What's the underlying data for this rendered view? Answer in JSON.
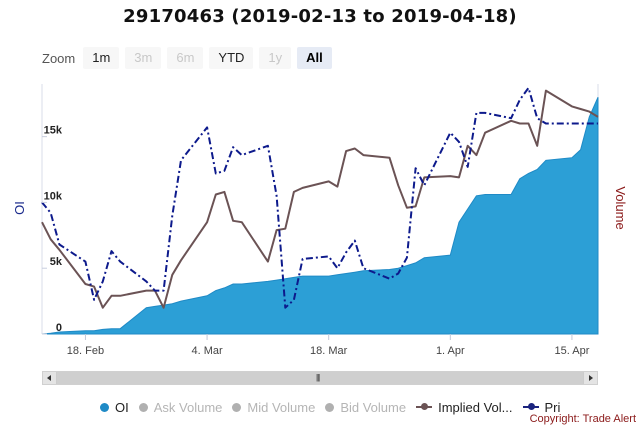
{
  "title": "29170463 (2019-02-13 to 2019-04-18)",
  "zoom": {
    "label": "Zoom",
    "buttons": [
      {
        "label": "1m",
        "state": "enabled"
      },
      {
        "label": "3m",
        "state": "disabled"
      },
      {
        "label": "6m",
        "state": "disabled"
      },
      {
        "label": "YTD",
        "state": "enabled"
      },
      {
        "label": "1y",
        "state": "disabled"
      },
      {
        "label": "All",
        "state": "selected"
      }
    ]
  },
  "legend": [
    {
      "label": "OI",
      "color": "#1f8ac6",
      "marker": "dot",
      "visible": true
    },
    {
      "label": "Ask Volume",
      "color": "#b0b0b0",
      "marker": "dot",
      "visible": false
    },
    {
      "label": "Mid Volume",
      "color": "#b0b0b0",
      "marker": "dot",
      "visible": false
    },
    {
      "label": "Bid Volume",
      "color": "#b0b0b0",
      "marker": "dot",
      "visible": false
    },
    {
      "label": "Implied Vol...",
      "color": "#6b5355",
      "marker": "line",
      "visible": true
    },
    {
      "label": "Pri",
      "color": "#1a237e",
      "marker": "line",
      "visible": true
    }
  ],
  "copyright": "Copyright: Trade Alert",
  "colors": {
    "oi": "#2c9fd6",
    "oi_line": "#1f8ac6",
    "implied_vol": "#6b5355",
    "price": "#0d1a8c",
    "left_axis": "#1a2a8c",
    "right_axis": "#8b1a1a"
  },
  "chart_data": {
    "type": "area",
    "title": "29170463 (2019-02-13 to 2019-04-18)",
    "x_range": [
      "2019-02-13",
      "2019-04-18"
    ],
    "x_ticks": [
      "18. Feb",
      "4. Mar",
      "18. Mar",
      "1. Apr",
      "15. Apr"
    ],
    "y_left": {
      "label": "OI",
      "ticks": [
        "0",
        "5k",
        "10k",
        "15k"
      ],
      "range": [
        0,
        19000
      ]
    },
    "y_right": {
      "label": "Volume"
    },
    "series": [
      {
        "name": "OI",
        "type": "area",
        "dates": [
          "2019-02-13",
          "2019-02-14",
          "2019-02-15",
          "2019-02-18",
          "2019-02-19",
          "2019-02-20",
          "2019-02-21",
          "2019-02-22",
          "2019-02-25",
          "2019-02-26",
          "2019-02-27",
          "2019-02-28",
          "2019-03-01",
          "2019-03-04",
          "2019-03-05",
          "2019-03-06",
          "2019-03-07",
          "2019-03-08",
          "2019-03-11",
          "2019-03-12",
          "2019-03-13",
          "2019-03-14",
          "2019-03-15",
          "2019-03-18",
          "2019-03-19",
          "2019-03-20",
          "2019-03-21",
          "2019-03-22",
          "2019-03-25",
          "2019-03-26",
          "2019-03-27",
          "2019-03-28",
          "2019-03-29",
          "2019-04-01",
          "2019-04-02",
          "2019-04-03",
          "2019-04-04",
          "2019-04-05",
          "2019-04-08",
          "2019-04-09",
          "2019-04-10",
          "2019-04-11",
          "2019-04-12",
          "2019-04-15",
          "2019-04-16",
          "2019-04-17",
          "2019-04-18"
        ],
        "values": [
          0,
          50,
          150,
          250,
          250,
          350,
          400,
          400,
          2000,
          2100,
          2200,
          2300,
          2500,
          2900,
          3300,
          3500,
          3800,
          3800,
          4000,
          4100,
          4200,
          4300,
          4400,
          4400,
          4500,
          4600,
          4700,
          4800,
          4900,
          5000,
          5200,
          5400,
          5800,
          6000,
          8500,
          9500,
          10500,
          10600,
          10600,
          11800,
          12200,
          12500,
          13200,
          13400,
          14000,
          16500,
          18000
        ]
      },
      {
        "name": "Implied Vol...",
        "type": "line",
        "dates": [
          "2019-02-13",
          "2019-02-14",
          "2019-02-15",
          "2019-02-18",
          "2019-02-19",
          "2019-02-20",
          "2019-02-21",
          "2019-02-22",
          "2019-02-25",
          "2019-02-26",
          "2019-02-27",
          "2019-02-28",
          "2019-03-01",
          "2019-03-04",
          "2019-03-05",
          "2019-03-06",
          "2019-03-07",
          "2019-03-08",
          "2019-03-11",
          "2019-03-12",
          "2019-03-13",
          "2019-03-14",
          "2019-03-15",
          "2019-03-18",
          "2019-03-19",
          "2019-03-20",
          "2019-03-21",
          "2019-03-22",
          "2019-03-25",
          "2019-03-26",
          "2019-03-27",
          "2019-03-28",
          "2019-03-29",
          "2019-04-01",
          "2019-04-02",
          "2019-04-03",
          "2019-04-04",
          "2019-04-05",
          "2019-04-08",
          "2019-04-09",
          "2019-04-10",
          "2019-04-11",
          "2019-04-12",
          "2019-04-15",
          "2019-04-16",
          "2019-04-17",
          "2019-04-18"
        ],
        "values": [
          8500,
          7200,
          6400,
          3800,
          3600,
          2000,
          2900,
          2900,
          3300,
          3300,
          2000,
          4500,
          5600,
          8500,
          10600,
          10800,
          8600,
          8500,
          5500,
          7900,
          8000,
          10800,
          11100,
          11600,
          11200,
          13900,
          14100,
          13600,
          13400,
          11300,
          9600,
          9700,
          11900,
          12000,
          11900,
          14300,
          13600,
          15300,
          16200,
          16000,
          16000,
          14300,
          18500,
          17300,
          17100,
          16900,
          16500
        ]
      },
      {
        "name": "Pri",
        "type": "line",
        "dash": true,
        "dates": [
          "2019-02-13",
          "2019-02-14",
          "2019-02-15",
          "2019-02-18",
          "2019-02-19",
          "2019-02-20",
          "2019-02-21",
          "2019-02-22",
          "2019-02-25",
          "2019-02-26",
          "2019-02-27",
          "2019-02-28",
          "2019-03-01",
          "2019-03-04",
          "2019-03-05",
          "2019-03-06",
          "2019-03-07",
          "2019-03-08",
          "2019-03-11",
          "2019-03-12",
          "2019-03-13",
          "2019-03-14",
          "2019-03-15",
          "2019-03-18",
          "2019-03-19",
          "2019-03-20",
          "2019-03-21",
          "2019-03-22",
          "2019-03-25",
          "2019-03-26",
          "2019-03-27",
          "2019-03-28",
          "2019-03-29",
          "2019-04-01",
          "2019-04-02",
          "2019-04-03",
          "2019-04-04",
          "2019-04-05",
          "2019-04-08",
          "2019-04-09",
          "2019-04-10",
          "2019-04-11",
          "2019-04-12",
          "2019-04-15",
          "2019-04-16",
          "2019-04-17",
          "2019-04-18"
        ],
        "values": [
          10000,
          9200,
          6800,
          5500,
          2600,
          4000,
          6300,
          5500,
          4000,
          3300,
          3300,
          9000,
          13200,
          15700,
          12200,
          12400,
          14200,
          13600,
          14300,
          10500,
          2000,
          2600,
          5700,
          5900,
          5000,
          6200,
          7100,
          5000,
          4200,
          4600,
          5800,
          12600,
          11300,
          15300,
          14600,
          12700,
          16800,
          16800,
          16400,
          17800,
          18700,
          16400,
          16000,
          16000,
          16000,
          16000,
          16000
        ]
      }
    ],
    "legend_position": "bottom",
    "grid": false
  }
}
